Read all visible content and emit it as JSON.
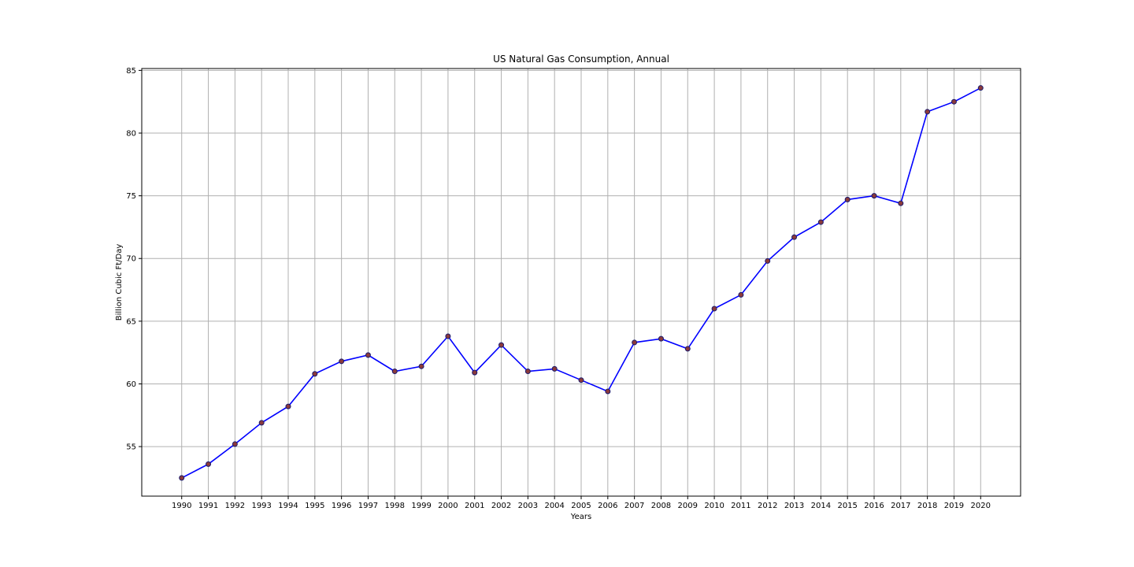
{
  "chart_data": {
    "type": "line",
    "title": "US Natural Gas Consumption, Annual",
    "xlabel": "Years",
    "ylabel": "Billion Cubic Ft/Day",
    "x": [
      1990,
      1991,
      1992,
      1993,
      1994,
      1995,
      1996,
      1997,
      1998,
      1999,
      2000,
      2001,
      2002,
      2003,
      2004,
      2005,
      2006,
      2007,
      2008,
      2009,
      2010,
      2011,
      2012,
      2013,
      2014,
      2015,
      2016,
      2017,
      2018,
      2019,
      2020
    ],
    "series": [
      {
        "values": [
          52.5,
          53.6,
          55.2,
          56.9,
          58.2,
          60.8,
          61.8,
          62.3,
          61.0,
          61.4,
          63.8,
          60.9,
          63.1,
          61.0,
          61.2,
          60.3,
          59.4,
          63.3,
          63.6,
          62.8,
          66.0,
          67.1,
          69.8,
          71.7,
          72.9,
          74.7,
          75.0,
          74.4,
          81.7,
          82.5,
          83.6
        ],
        "line_color": "#0000ff",
        "marker_color": "#8b3a3a"
      }
    ],
    "xlim": [
      1988.5,
      2021.5
    ],
    "ylim": [
      51.05,
      85.15
    ],
    "yticks": [
      55,
      60,
      65,
      70,
      75,
      80,
      85
    ],
    "grid": true
  }
}
